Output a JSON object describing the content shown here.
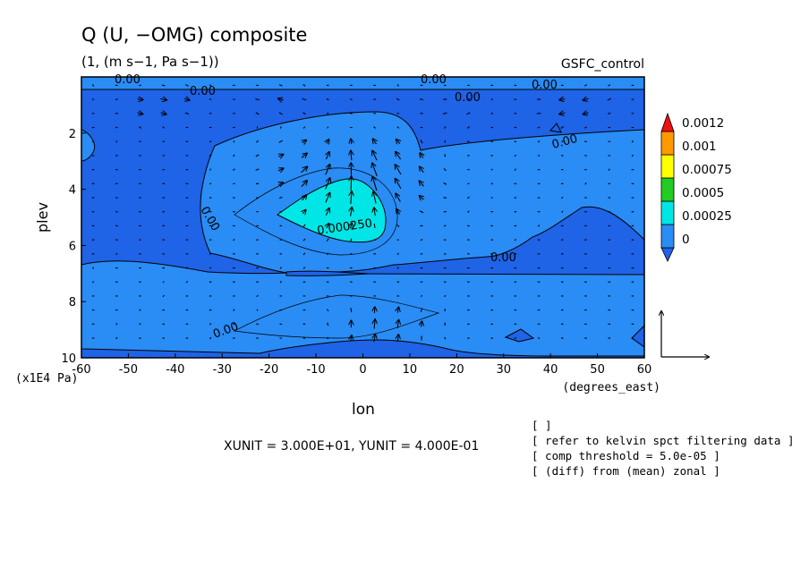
{
  "chart_data": {
    "type": "heatmap",
    "title": "Q (U, −OMG) composite",
    "subtitle": "(1, (m s−1, Pa s−1))",
    "run_label": "GSFC_control",
    "xlabel": "lon",
    "x_units": "(degrees_east)",
    "ylabel": "plev",
    "y_units": "(x1E4 Pa)",
    "xlim": [
      -60,
      60
    ],
    "ylim": [
      10,
      0
    ],
    "x_ticks": [
      "-60",
      "-50",
      "-40",
      "-30",
      "-20",
      "-10",
      "0",
      "10",
      "20",
      "30",
      "40",
      "50",
      "60"
    ],
    "y_ticks": [
      "2",
      "4",
      "6",
      "8",
      "10"
    ],
    "colorbar": {
      "levels": [
        "0",
        "0.00025",
        "0.0005",
        "0.00075",
        "0.001",
        "0.0012"
      ],
      "colors": [
        "#1f63e6",
        "#2a8cf5",
        "#00e6e6",
        "#22cc22",
        "#ffff00",
        "#ff9900",
        "#ee1111"
      ]
    },
    "contour_labels": [
      "0.00",
      "0.00",
      "0.00",
      "0.00",
      "0.00",
      "0.00",
      "0.00",
      "0.00",
      "0.00",
      "0.000250"
    ],
    "vector_units": "XUNIT = 3.000E+01, YUNIT = 4.000E-01",
    "notes": [
      "[  ]",
      "[ refer to kelvin spct filtering data ]",
      "[ comp threshold = 5.0e-05 ]",
      "[ (diff) from (mean) zonal ]"
    ]
  }
}
